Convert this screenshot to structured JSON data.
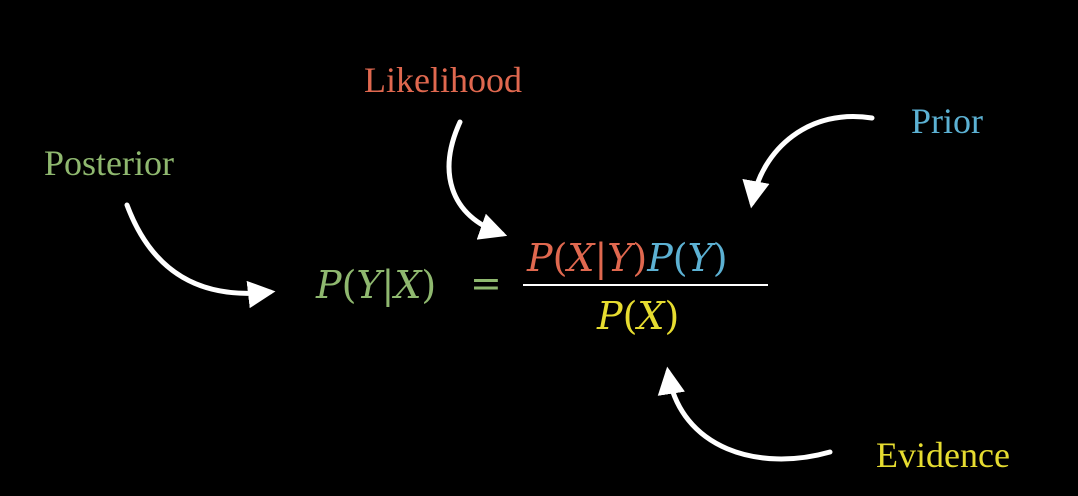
{
  "labels": {
    "likelihood": "Likelihood",
    "prior": "Prior",
    "posterior": "Posterior",
    "evidence": "Evidence"
  },
  "equation": {
    "lhs": {
      "P": "P",
      "open": "(",
      "Y": "Y",
      "bar": "|",
      "X": "X",
      "close": ")",
      "eq": "="
    },
    "likelihood_term": {
      "P": "P",
      "open": "(",
      "X": "X",
      "bar": "|",
      "Y": "Y",
      "close": ")"
    },
    "prior_term": {
      "P": "P",
      "open": "(",
      "Y": "Y",
      "close": ")"
    },
    "evidence_term": {
      "P": "P",
      "open": "(",
      "X": "X",
      "close": ")"
    }
  },
  "colors": {
    "background": "#000000",
    "posterior": "#8fb86f",
    "likelihood": "#e0684f",
    "prior": "#5cb1d3",
    "evidence": "#e6dc30",
    "arrow": "#ffffff",
    "fraction_bar": "#ffffff"
  }
}
